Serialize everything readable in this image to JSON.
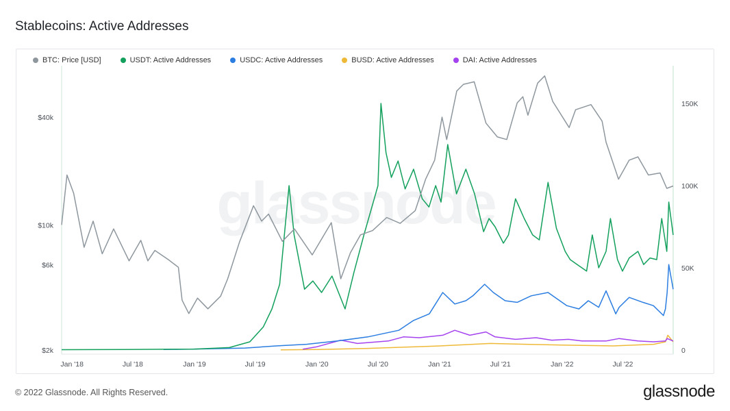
{
  "title": "Stablecoins: Active Addresses",
  "footer": {
    "copyright": "© 2022 Glassnode. All Rights Reserved.",
    "brand": "glassnode"
  },
  "watermark": "glassnode",
  "chart_data": {
    "type": "line",
    "legend_position": "top-left",
    "grid": false,
    "x_ticks": [
      "Jan '18",
      "Jul '18",
      "Jan '19",
      "Jul '19",
      "Jan '20",
      "Jul '20",
      "Jan '21",
      "Jul '21",
      "Jan '22",
      "Jul '22"
    ],
    "y_left": {
      "scale": "log",
      "ticks": [
        "$2k",
        "$6k",
        "$10k",
        "$40k"
      ],
      "tick_values": [
        2000,
        6000,
        10000,
        40000
      ]
    },
    "y_right": {
      "scale": "linear",
      "ticks": [
        "0",
        "50K",
        "100K",
        "150K"
      ],
      "tick_values": [
        0,
        50000,
        100000,
        150000
      ],
      "range": [
        0,
        168000
      ]
    },
    "series": [
      {
        "name": "BTC: Price [USD]",
        "axis": "left",
        "color": "#8e979e",
        "x": [
          "2017-12-01",
          "2017-12-17",
          "2018-01-06",
          "2018-02-06",
          "2018-03-05",
          "2018-04-01",
          "2018-05-05",
          "2018-06-20",
          "2018-07-25",
          "2018-08-15",
          "2018-09-05",
          "2018-10-15",
          "2018-11-14",
          "2018-11-25",
          "2018-12-15",
          "2019-01-10",
          "2019-02-10",
          "2019-03-20",
          "2019-04-10",
          "2019-05-15",
          "2019-06-26",
          "2019-07-20",
          "2019-08-10",
          "2019-09-20",
          "2019-10-26",
          "2019-12-18",
          "2020-02-13",
          "2020-03-12",
          "2020-04-10",
          "2020-05-10",
          "2020-06-15",
          "2020-07-27",
          "2020-09-05",
          "2020-10-20",
          "2020-11-20",
          "2020-12-17",
          "2021-01-08",
          "2021-01-22",
          "2021-02-21",
          "2021-03-13",
          "2021-04-14",
          "2021-05-19",
          "2021-06-22",
          "2021-07-20",
          "2021-08-20",
          "2021-09-06",
          "2021-09-21",
          "2021-10-20",
          "2021-11-10",
          "2021-12-04",
          "2022-01-22",
          "2022-02-10",
          "2022-03-28",
          "2022-04-30",
          "2022-05-12",
          "2022-06-18",
          "2022-07-20",
          "2022-08-15",
          "2022-09-15",
          "2022-10-20",
          "2022-11-09",
          "2022-11-28"
        ],
        "y": [
          10000,
          19000,
          15000,
          7500,
          10500,
          6900,
          9500,
          6300,
          8200,
          6300,
          7200,
          6400,
          5800,
          3800,
          3200,
          3900,
          3400,
          4000,
          5000,
          8000,
          12800,
          10500,
          11500,
          8100,
          9500,
          6800,
          10300,
          5000,
          7000,
          8800,
          9300,
          11000,
          10200,
          12000,
          18000,
          23000,
          40000,
          30000,
          56000,
          61000,
          63000,
          37000,
          31000,
          30000,
          48000,
          52000,
          41000,
          62000,
          68000,
          49000,
          35000,
          44000,
          47000,
          38000,
          29000,
          18000,
          23000,
          24000,
          19000,
          19500,
          16000,
          16500
        ]
      },
      {
        "name": "USDT: Active Addresses",
        "axis": "right",
        "color": "#12a05c",
        "x": [
          "2017-12-01",
          "2018-06-01",
          "2019-01-01",
          "2019-04-15",
          "2019-06-15",
          "2019-07-25",
          "2019-08-20",
          "2019-09-12",
          "2019-10-10",
          "2019-10-25",
          "2019-11-25",
          "2019-12-20",
          "2020-01-15",
          "2020-02-15",
          "2020-03-25",
          "2020-04-20",
          "2020-05-20",
          "2020-06-20",
          "2020-07-01",
          "2020-07-10",
          "2020-07-25",
          "2020-08-10",
          "2020-08-30",
          "2020-09-20",
          "2020-10-15",
          "2020-11-10",
          "2020-11-30",
          "2020-12-20",
          "2021-01-05",
          "2021-01-25",
          "2021-02-20",
          "2021-03-20",
          "2021-04-15",
          "2021-05-12",
          "2021-05-28",
          "2021-06-15",
          "2021-07-10",
          "2021-07-25",
          "2021-08-15",
          "2021-09-10",
          "2021-10-05",
          "2021-10-25",
          "2021-11-20",
          "2021-12-15",
          "2022-01-10",
          "2022-01-25",
          "2022-02-15",
          "2022-03-15",
          "2022-04-01",
          "2022-04-20",
          "2022-05-12",
          "2022-05-25",
          "2022-06-15",
          "2022-06-30",
          "2022-07-20",
          "2022-08-15",
          "2022-09-01",
          "2022-09-20",
          "2022-10-10",
          "2022-10-25",
          "2022-11-09",
          "2022-11-15",
          "2022-11-28"
        ],
        "y": [
          200,
          300,
          600,
          1500,
          5000,
          14000,
          25000,
          40000,
          100000,
          70000,
          37000,
          42000,
          35000,
          45000,
          25000,
          47000,
          70000,
          92000,
          100000,
          150000,
          120000,
          105000,
          115000,
          98000,
          110000,
          92000,
          87000,
          100000,
          90000,
          125000,
          95000,
          110000,
          95000,
          72000,
          80000,
          75000,
          65000,
          70000,
          92000,
          80000,
          70000,
          67000,
          102000,
          74000,
          60000,
          55000,
          52000,
          48000,
          70000,
          50000,
          60000,
          80000,
          55000,
          48000,
          56000,
          60000,
          52000,
          56000,
          55000,
          80000,
          60000,
          90000,
          70000
        ]
      },
      {
        "name": "USDC: Active Addresses",
        "axis": "right",
        "color": "#2b7de1",
        "x": [
          "2018-10-01",
          "2019-01-01",
          "2019-06-01",
          "2019-09-01",
          "2019-12-01",
          "2020-03-01",
          "2020-06-01",
          "2020-09-01",
          "2020-10-15",
          "2020-12-01",
          "2021-01-10",
          "2021-02-15",
          "2021-03-20",
          "2021-04-10",
          "2021-05-15",
          "2021-06-10",
          "2021-07-15",
          "2021-08-20",
          "2021-10-01",
          "2021-11-20",
          "2022-01-15",
          "2022-02-20",
          "2022-03-20",
          "2022-04-20",
          "2022-05-12",
          "2022-06-10",
          "2022-06-20",
          "2022-07-20",
          "2022-08-30",
          "2022-09-30",
          "2022-10-30",
          "2022-11-05",
          "2022-11-10",
          "2022-11-15",
          "2022-11-28"
        ],
        "y": [
          300,
          600,
          1200,
          2500,
          3500,
          5500,
          8000,
          12000,
          18000,
          22000,
          35000,
          28000,
          30000,
          33000,
          40000,
          35000,
          30000,
          29000,
          33000,
          35000,
          27000,
          25000,
          30000,
          26000,
          36000,
          22000,
          26000,
          32000,
          29000,
          27000,
          21000,
          25000,
          35000,
          52000,
          37000
        ]
      },
      {
        "name": "BUSD: Active Addresses",
        "axis": "right",
        "color": "#efb938",
        "x": [
          "2019-09-15",
          "2020-01-01",
          "2020-06-01",
          "2021-01-01",
          "2021-06-01",
          "2022-01-01",
          "2022-06-01",
          "2022-10-01",
          "2022-11-05",
          "2022-11-12",
          "2022-11-28"
        ],
        "y": [
          100,
          300,
          1000,
          2500,
          4000,
          3000,
          2500,
          3500,
          5000,
          9000,
          5000
        ]
      },
      {
        "name": "DAI: Active Addresses",
        "axis": "right",
        "color": "#a542f0",
        "x": [
          "2019-11-20",
          "2020-01-01",
          "2020-03-12",
          "2020-05-01",
          "2020-08-01",
          "2020-09-15",
          "2020-11-01",
          "2021-01-10",
          "2021-02-15",
          "2021-04-01",
          "2021-05-19",
          "2021-06-15",
          "2021-08-15",
          "2021-10-15",
          "2021-12-01",
          "2022-01-20",
          "2022-03-01",
          "2022-05-12",
          "2022-06-20",
          "2022-08-15",
          "2022-10-01",
          "2022-11-05",
          "2022-11-10",
          "2022-11-28"
        ],
        "y": [
          500,
          2000,
          6000,
          4000,
          5500,
          8000,
          7500,
          9000,
          12000,
          9000,
          11000,
          8000,
          6500,
          7500,
          6000,
          6500,
          5500,
          5500,
          7000,
          5500,
          5000,
          5500,
          7000,
          5500
        ]
      }
    ]
  }
}
